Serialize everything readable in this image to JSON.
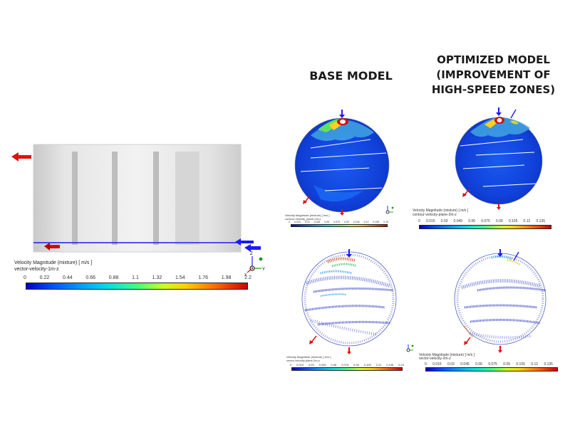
{
  "headings": {
    "base_model": "BASE MODEL",
    "optimized_model": "OPTIMIZED MODEL (IMPROVEMENT OF HIGH-SPEED ZONES)"
  },
  "main_legend": {
    "title": "Velocity Magnitude (mixture)  [ m/s ]",
    "subtitle": "vector-velocity-1m-z",
    "ticks": [
      "0",
      "0.22",
      "0.44",
      "0.66",
      "0.88",
      "1.1",
      "1.32",
      "1.54",
      "1.76",
      "1.98",
      "2.2"
    ]
  },
  "base_contour_legend": {
    "title": "Velocity Magnitude (mixture)  [ m/s ]",
    "subtitle": "contour-velocity_plane-2m-z",
    "ticks": [
      "0",
      "0.015",
      "0.03",
      "0.045",
      "0.06",
      "0.075",
      "0.09",
      "0.105",
      "0.12",
      "0.135",
      "0.15"
    ]
  },
  "optimized_contour_legend": {
    "title": "Velocity Magnitude (mixture)  [ m/s ]",
    "subtitle": "contour-velocity-plane-2m-z",
    "ticks": [
      "0",
      "0.015",
      "0.03",
      "0.045",
      "0.06",
      "0.075",
      "0.09",
      "0.105",
      "0.12",
      "0.135"
    ]
  },
  "base_vector_legend": {
    "title": "Velocity Magnitude (mixture)  [ m/s ]",
    "subtitle": "vector-velocity-plane-2m-z",
    "ticks": [
      "0",
      "0.015",
      "0.03",
      "0.045",
      "0.06",
      "0.075",
      "0.09",
      "0.105",
      "0.12",
      "0.135",
      "0.15"
    ]
  },
  "optimized_vector_legend": {
    "title": "Velocity Magnitude (mixture)  [ m/s ]",
    "subtitle": "vector-velocity-2m-z",
    "ticks": [
      "0",
      "0.015",
      "0.03",
      "0.045",
      "0.06",
      "0.075",
      "0.09",
      "0.105",
      "0.12",
      "0.135"
    ]
  },
  "axis_labels": {
    "y": "Y",
    "z": "Z",
    "x": "X"
  }
}
